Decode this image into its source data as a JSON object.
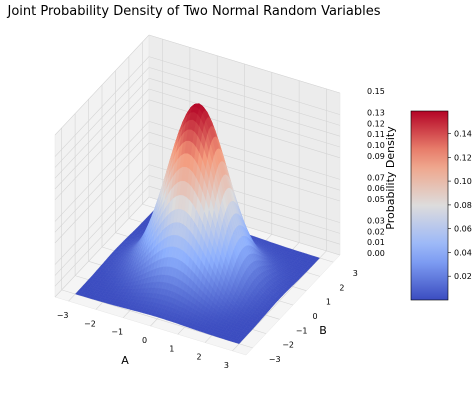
{
  "chart_data": {
    "type": "surface",
    "title": "Joint Probability Density of Two Normal Random Variables",
    "xlabel": "A",
    "ylabel": "B",
    "zlabel": "Probability Density",
    "x_ticks": [
      "−3",
      "−2",
      "−1",
      "0",
      "1",
      "2",
      "3"
    ],
    "x_tick_values": [
      -3,
      -2,
      -1,
      0,
      1,
      2,
      3
    ],
    "y_ticks": [
      "−3",
      "−2",
      "−1",
      "0",
      "1",
      "2",
      "3"
    ],
    "y_tick_values": [
      -3,
      -2,
      -1,
      0,
      1,
      2,
      3
    ],
    "z_ticks": [
      "0.00",
      "0.01",
      "0.02",
      "0.03",
      "0.05",
      "0.06",
      "0.07",
      "0.09",
      "0.10",
      "0.11",
      "0.12",
      "0.13",
      "0.15"
    ],
    "z_tick_values": [
      0.0,
      0.01,
      0.02,
      0.03,
      0.05,
      0.06,
      0.07,
      0.09,
      0.1,
      0.11,
      0.12,
      0.13,
      0.15
    ],
    "xlim": [
      -3.5,
      3.5
    ],
    "ylim": [
      -3.5,
      3.5
    ],
    "zlim": [
      0,
      0.15
    ],
    "peak": {
      "x": 0,
      "y": 0,
      "z": 0.159
    },
    "colorbar": {
      "colormap": "coolwarm",
      "ticks": [
        "0.02",
        "0.04",
        "0.06",
        "0.08",
        "0.10",
        "0.12",
        "0.14"
      ],
      "tick_values": [
        0.02,
        0.04,
        0.06,
        0.08,
        0.1,
        0.12,
        0.14
      ],
      "range": [
        0,
        0.159
      ]
    },
    "grid": true,
    "colors": {
      "low": "#3b4cc0",
      "mid": "#dddcdc",
      "high": "#b40426"
    }
  }
}
